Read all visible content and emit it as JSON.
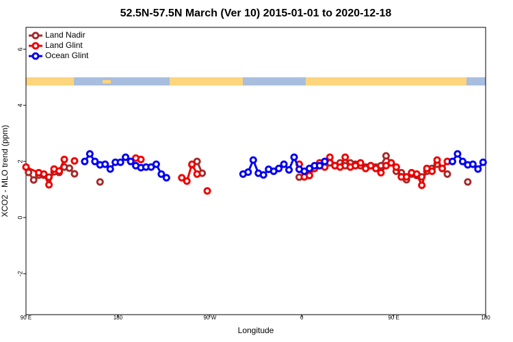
{
  "chart_data": {
    "type": "line",
    "title": "52.5N-57.5N March (Ver 10)   2015-01-01 to 2020-12-18",
    "xlabel": "Longitude",
    "ylabel": "XCO2 - MLO trend (ppm)",
    "xlim": [
      90,
      540
    ],
    "ylim": [
      -3.46,
      6.78
    ],
    "xticks": [
      {
        "value": 90,
        "label": "90 E"
      },
      180,
      {
        "value": 270,
        "label": "90 W"
      },
      {
        "value": 360,
        "label": "0"
      },
      {
        "value": 450,
        "label": "90 E"
      },
      {
        "value": 540,
        "label": "180"
      }
    ],
    "yticks": [
      -2,
      0,
      2,
      4,
      6
    ],
    "legend": "top-left",
    "series": [
      {
        "name": "Land Nadir",
        "color": "#a52a2a",
        "x": [
          92.5,
          97.5,
          102.5,
          107.5,
          112.5,
          117.5,
          122.5,
          127.5,
          132.5,
          137.5,
          142.5,
          162.5,
          167.5,
          252.5,
          257.5,
          262.5,
          267.5,
          357.5,
          362.5,
          382.5,
          387.5,
          392.5,
          397.5,
          402.5,
          407.5,
          412.5,
          417.5,
          422.5,
          427.5,
          432.5,
          437.5,
          442.5,
          447.5,
          452.5,
          457.5,
          462.5,
          467.5,
          472.5,
          477.5,
          482.5,
          487.5,
          492.5,
          497.5,
          502.5,
          507.5,
          522.5
        ],
        "values": [
          1.61,
          1.34,
          1.51,
          1.51,
          1.44,
          1.63,
          1.61,
          1.8,
          1.76,
          1.56,
          null,
          1.27,
          null,
          1.88,
          2.0,
          1.58,
          null,
          1.44,
          null,
          1.9,
          1.95,
          1.85,
          1.95,
          1.85,
          1.95,
          1.9,
          1.85,
          1.8,
          1.85,
          1.8,
          1.85,
          2.2,
          1.95,
          1.65,
          1.6,
          1.35,
          1.55,
          1.5,
          1.45,
          1.65,
          1.75,
          1.9,
          1.75,
          1.55,
          null,
          1.27
        ]
      },
      {
        "name": "Land Glint",
        "color": "#ee0000",
        "x": [
          90,
          102.5,
          107.5,
          112.5,
          117.5,
          122.5,
          127.5,
          132.5,
          137.5,
          142.5,
          197.5,
          202.5,
          207.5,
          242.5,
          247.5,
          252.5,
          257.5,
          262.5,
          267.5,
          272.5,
          357.5,
          362.5,
          367.5,
          372.5,
          377.5,
          382.5,
          387.5,
          392.5,
          397.5,
          402.5,
          407.5,
          412.5,
          417.5,
          422.5,
          427.5,
          432.5,
          437.5,
          442.5,
          447.5,
          452.5,
          457.5,
          462.5,
          467.5,
          472.5,
          477.5,
          482.5,
          487.5,
          492.5,
          497.5,
          502.5
        ],
        "values": [
          1.8,
          1.6,
          1.55,
          1.17,
          1.73,
          1.66,
          2.07,
          null,
          2.02,
          null,
          2.12,
          2.07,
          null,
          1.42,
          1.3,
          1.9,
          1.55,
          null,
          0.95,
          null,
          1.9,
          1.45,
          1.5,
          1.75,
          1.95,
          1.8,
          2.15,
          1.85,
          1.8,
          2.15,
          1.8,
          1.85,
          1.95,
          1.75,
          1.85,
          1.75,
          1.6,
          1.85,
          1.95,
          1.8,
          1.45,
          1.45,
          1.6,
          1.55,
          1.15,
          1.75,
          1.65,
          2.05,
          1.75,
          2.0
        ]
      },
      {
        "name": "Ocean Glint",
        "color": "#0000ee",
        "x": [
          147.5,
          152.5,
          157.5,
          162.5,
          167.5,
          172.5,
          177.5,
          182.5,
          187.5,
          192.5,
          197.5,
          202.5,
          207.5,
          212.5,
          217.5,
          222.5,
          227.5,
          232.5,
          302.5,
          307.5,
          312.5,
          317.5,
          322.5,
          327.5,
          332.5,
          337.5,
          342.5,
          347.5,
          352.5,
          357.5,
          362.5,
          367.5,
          372.5,
          377.5,
          382.5,
          387.5,
          507.5,
          512.5,
          517.5,
          522.5,
          527.5,
          532.5,
          537.5
        ],
        "values": [
          2.0,
          2.27,
          2.0,
          1.88,
          1.9,
          1.73,
          1.97,
          1.97,
          2.15,
          2.0,
          1.85,
          1.78,
          1.8,
          1.8,
          1.9,
          1.55,
          1.42,
          null,
          1.55,
          1.62,
          2.05,
          1.58,
          1.52,
          1.72,
          1.65,
          1.75,
          1.9,
          1.7,
          2.15,
          1.72,
          1.65,
          1.75,
          1.85,
          1.85,
          2.0,
          null,
          2.0,
          2.27,
          2.0,
          1.88,
          1.9,
          1.73,
          1.97
        ]
      }
    ]
  }
}
